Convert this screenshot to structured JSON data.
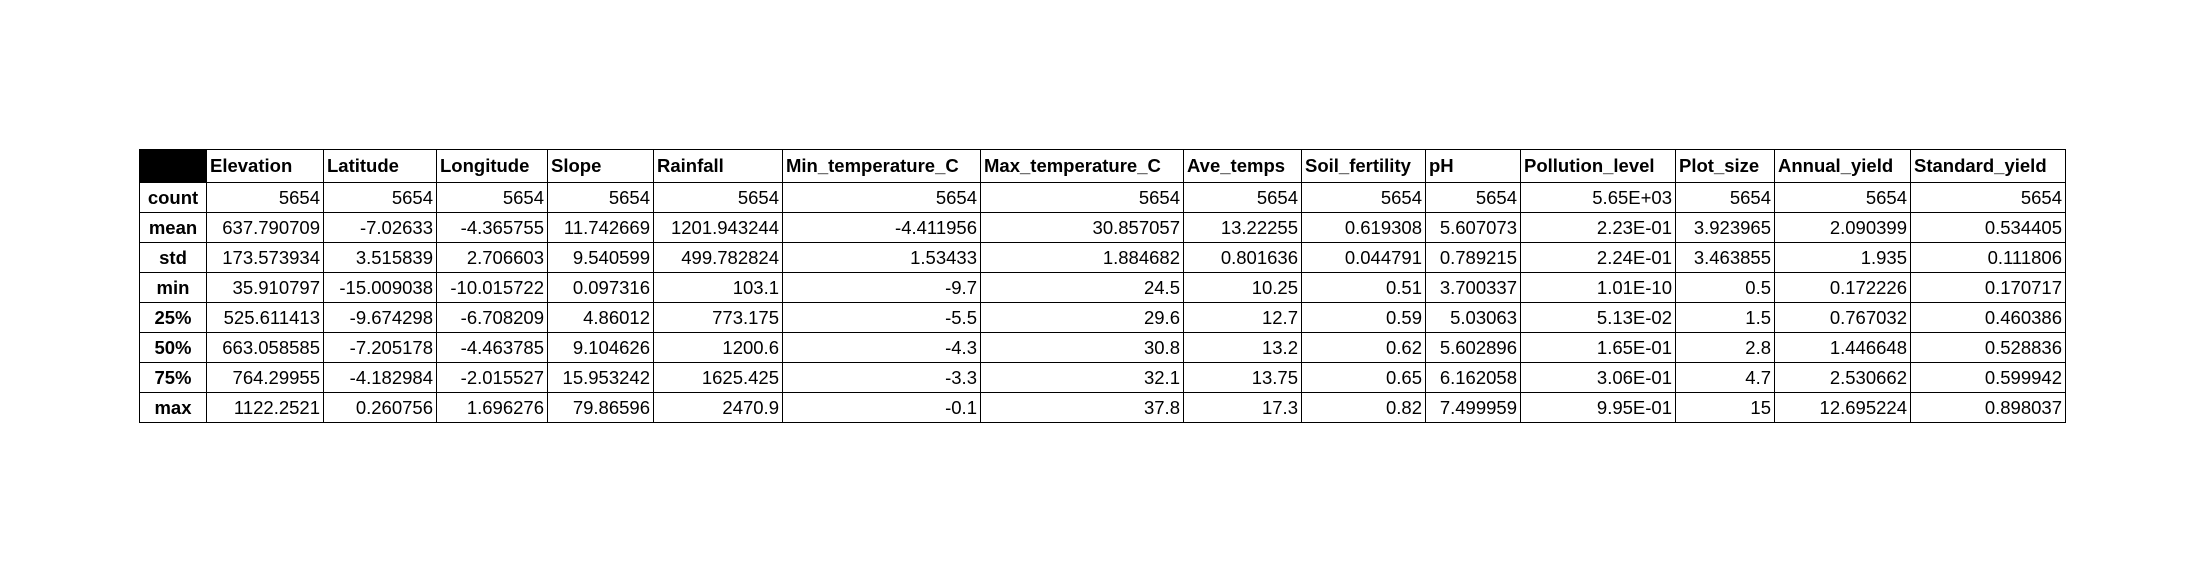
{
  "chart_data": {
    "type": "table",
    "title": "",
    "columns": [
      "Elevation",
      "Latitude",
      "Longitude",
      "Slope",
      "Rainfall",
      "Min_temperature_C",
      "Max_temperature_C",
      "Ave_temps",
      "Soil_fertility",
      "pH",
      "Pollution_level",
      "Plot_size",
      "Annual_yield",
      "Standard_yield"
    ],
    "rows": [
      {
        "label": "count",
        "cells": [
          "5654",
          "5654",
          "5654",
          "5654",
          "5654",
          "5654",
          "5654",
          "5654",
          "5654",
          "5654",
          "5.65E+03",
          "5654",
          "5654",
          "5654"
        ]
      },
      {
        "label": "mean",
        "cells": [
          "637.790709",
          "-7.02633",
          "-4.365755",
          "11.742669",
          "1201.943244",
          "-4.411956",
          "30.857057",
          "13.22255",
          "0.619308",
          "5.607073",
          "2.23E-01",
          "3.923965",
          "2.090399",
          "0.534405"
        ]
      },
      {
        "label": "std",
        "cells": [
          "173.573934",
          "3.515839",
          "2.706603",
          "9.540599",
          "499.782824",
          "1.53433",
          "1.884682",
          "0.801636",
          "0.044791",
          "0.789215",
          "2.24E-01",
          "3.463855",
          "1.935",
          "0.111806"
        ]
      },
      {
        "label": "min",
        "cells": [
          "35.910797",
          "-15.009038",
          "-10.015722",
          "0.097316",
          "103.1",
          "-9.7",
          "24.5",
          "10.25",
          "0.51",
          "3.700337",
          "1.01E-10",
          "0.5",
          "0.172226",
          "0.170717"
        ]
      },
      {
        "label": "25%",
        "cells": [
          "525.611413",
          "-9.674298",
          "-6.708209",
          "4.86012",
          "773.175",
          "-5.5",
          "29.6",
          "12.7",
          "0.59",
          "5.03063",
          "5.13E-02",
          "1.5",
          "0.767032",
          "0.460386"
        ]
      },
      {
        "label": "50%",
        "cells": [
          "663.058585",
          "-7.205178",
          "-4.463785",
          "9.104626",
          "1200.6",
          "-4.3",
          "30.8",
          "13.2",
          "0.62",
          "5.602896",
          "1.65E-01",
          "2.8",
          "1.446648",
          "0.528836"
        ]
      },
      {
        "label": "75%",
        "cells": [
          "764.29955",
          "-4.182984",
          "-2.015527",
          "15.953242",
          "1625.425",
          "-3.3",
          "32.1",
          "13.75",
          "0.65",
          "6.162058",
          "3.06E-01",
          "4.7",
          "2.530662",
          "0.599942"
        ]
      },
      {
        "label": "max",
        "cells": [
          "1122.2521",
          "0.260756",
          "1.696276",
          "79.86596",
          "2470.9",
          "-0.1",
          "37.8",
          "17.3",
          "0.82",
          "7.499959",
          "9.95E-01",
          "15",
          "12.695224",
          "0.898037"
        ]
      }
    ]
  }
}
